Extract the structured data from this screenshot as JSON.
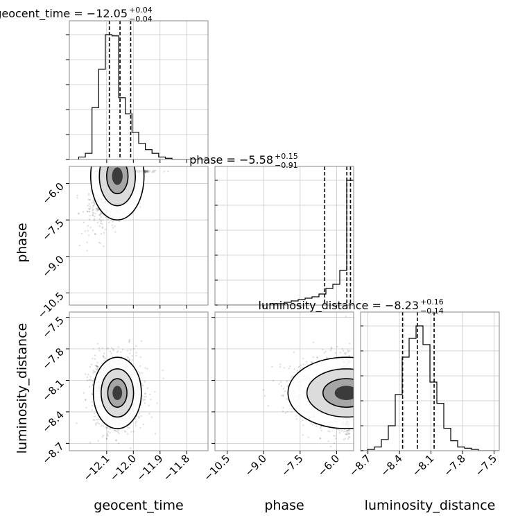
{
  "chart_data": {
    "type": "corner",
    "parameters": [
      "geocent_time",
      "phase",
      "luminosity_distance"
    ],
    "axis_labels": {
      "geocent_time": "geocent_time",
      "phase": "phase",
      "luminosity_distance": "luminosity_distance"
    },
    "titles": [
      {
        "param": "geocent_time",
        "text": "geocent_time = −12.05",
        "plus": "+0.04",
        "minus": "−0.04"
      },
      {
        "param": "phase",
        "text": "phase = −5.58",
        "plus": "+0.15",
        "minus": "−0.91"
      },
      {
        "param": "luminosity_distance",
        "text": "luminosity_distance = −8.23",
        "plus": "+0.16",
        "minus": "−0.14"
      }
    ],
    "ranges": {
      "geocent_time": [
        -12.24,
        -11.72
      ],
      "phase": [
        -11.0,
        -5.3
      ],
      "luminosity_distance": [
        -8.77,
        -7.45
      ]
    },
    "ticks": {
      "geocent_time": {
        "values": [
          -12.1,
          -12.0,
          -11.9,
          -11.8
        ],
        "labels": [
          "−12.1",
          "−12.0",
          "−11.9",
          "−11.8"
        ]
      },
      "phase": {
        "values": [
          -10.5,
          -9.0,
          -7.5,
          -6.0
        ],
        "labels": [
          "−10.5",
          "−9.0",
          "−7.5",
          "−6.0"
        ]
      },
      "luminosity_distance": {
        "values": [
          -8.7,
          -8.4,
          -8.1,
          -7.8,
          -7.5
        ],
        "labels": [
          "−8.7",
          "−8.4",
          "−8.1",
          "−7.8",
          "−7.5"
        ]
      }
    },
    "histograms": {
      "geocent_time": {
        "bin_start": -12.205,
        "bin_width": 0.025,
        "counts": [
          2,
          5,
          42,
          73,
          101,
          100,
          50,
          37,
          22,
          13,
          8,
          5,
          2,
          1,
          0,
          0,
          0,
          0,
          0,
          0
        ],
        "quantiles": [
          -12.09,
          -12.05,
          -12.01
        ]
      },
      "phase": {
        "bin_start": -11.0,
        "bin_width": 0.285,
        "counts": [
          0,
          0,
          0,
          0,
          0,
          0,
          0,
          0,
          1,
          1,
          2,
          3,
          4,
          5,
          6,
          8,
          12,
          15,
          25,
          90
        ],
        "quantiles": [
          -6.49,
          -5.58,
          -5.43
        ]
      },
      "luminosity_distance": {
        "bin_start": -8.77,
        "bin_width": 0.066,
        "counts": [
          0,
          1,
          3,
          9,
          20,
          45,
          75,
          90,
          100,
          85,
          55,
          38,
          18,
          8,
          3,
          2,
          1,
          0,
          0,
          0
        ],
        "quantiles": [
          -8.37,
          -8.23,
          -8.07
        ]
      }
    },
    "scatter_pairs": [
      {
        "x": "geocent_time",
        "y": "phase",
        "center": [
          -12.06,
          -5.7
        ],
        "spread": [
          0.05,
          0.9
        ],
        "corr": 0.65
      },
      {
        "x": "geocent_time",
        "y": "luminosity_distance",
        "center": [
          -12.06,
          -8.22
        ],
        "spread": [
          0.045,
          0.17
        ],
        "corr": 0.0
      },
      {
        "x": "phase",
        "y": "luminosity_distance",
        "center": [
          -5.6,
          -8.22
        ],
        "spread": [
          1.2,
          0.17
        ],
        "corr": 0.0
      }
    ],
    "grid": true
  }
}
